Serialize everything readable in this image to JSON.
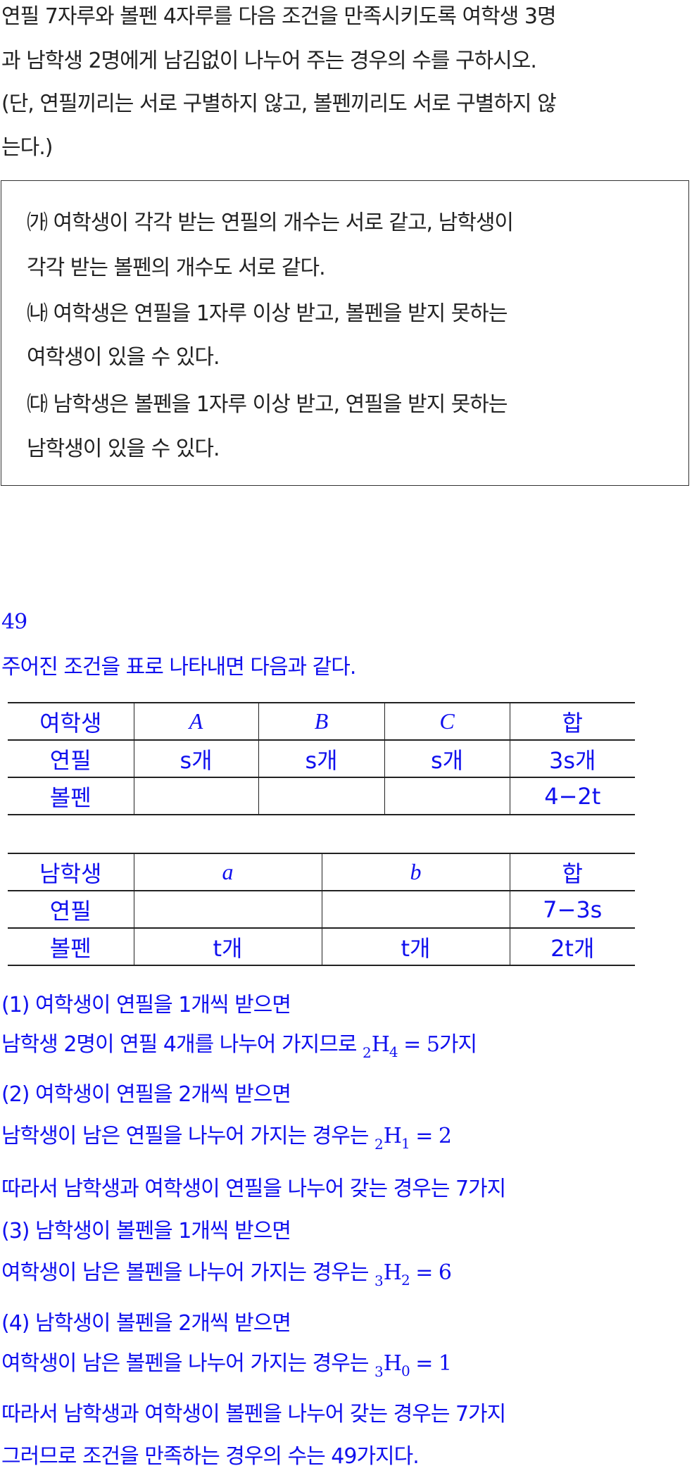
{
  "problem": {
    "lines": [
      "연필 7자루와 볼펜 4자루를 다음 조건을 만족시키도록 여학생 3명",
      "과 남학생 2명에게 남김없이 나누어 주는 경우의 수를 구하시오.",
      "(단, 연필끼리는 서로 구별하지 않고, 볼펜끼리도 서로 구별하지 않",
      "는다.)"
    ],
    "conditions": [
      "㈎ 여학생이 각각 받는 연필의 개수는 서로 같고, 남학생이",
      "각각 받는 볼펜의 개수도 서로 같다.",
      "㈏ 여학생은 연필을 1자루 이상 받고, 볼펜을 받지 못하는",
      "여학생이 있을 수 있다.",
      "㈐ 남학생은 볼펜을 1자루 이상 받고, 연필을 받지 못하는",
      "남학생이 있을 수 있다."
    ]
  },
  "answer": "49",
  "intro": "주어진 조건을 표로 나타내면 다음과 같다.",
  "table_girls": {
    "header": [
      "여학생",
      "A",
      "B",
      "C",
      "합"
    ],
    "rows": [
      [
        "연필",
        "s개",
        "s개",
        "s개",
        "3s개"
      ],
      [
        "볼펜",
        "",
        "",
        "",
        "4−2t"
      ]
    ]
  },
  "table_boys": {
    "header": [
      "남학생",
      "a",
      "b",
      "합"
    ],
    "rows": [
      [
        "연필",
        "",
        "",
        "7−3s"
      ],
      [
        "볼펜",
        "t개",
        "t개",
        "2t개"
      ]
    ]
  },
  "solution": {
    "l1": "(1) 여학생이 연필을 1개씩 받으면",
    "l2a": "남학생 2명이 연필 4개를 나누어 가지므로 ",
    "l2h": {
      "n": "2",
      "r": "4",
      "rest": " = 5가지"
    },
    "l3": "(2) 여학생이 연필을 2개씩 받으면",
    "l4a": "남학생이 남은 연필을 나누어 가지는 경우는 ",
    "l4h": {
      "n": "2",
      "r": "1",
      "rest": " = 2"
    },
    "l5": "따라서 남학생과 여학생이 연필을 나누어 갖는 경우는 7가지",
    "l6": "(3) 남학생이 볼펜을 1개씩 받으면",
    "l7a": "여학생이 남은 볼펜을 나누어 가지는 경우는 ",
    "l7h": {
      "n": "3",
      "r": "2",
      "rest": " = 6"
    },
    "l8": "(4) 남학생이 볼펜을 2개씩 받으면",
    "l9a": "여학생이 남은 볼펜을 나누어 가지는 경우는 ",
    "l9h": {
      "n": "3",
      "r": "0",
      "rest": " = 1"
    },
    "l10": "따라서 남학생과 여학생이 볼펜을 나누어 갖는 경우는 7가지",
    "l11": "그러므로 조건을 만족하는 경우의 수는 49가지다.",
    "H": "H"
  },
  "colors": {
    "text": "#222222",
    "solution": "#1010ee"
  }
}
